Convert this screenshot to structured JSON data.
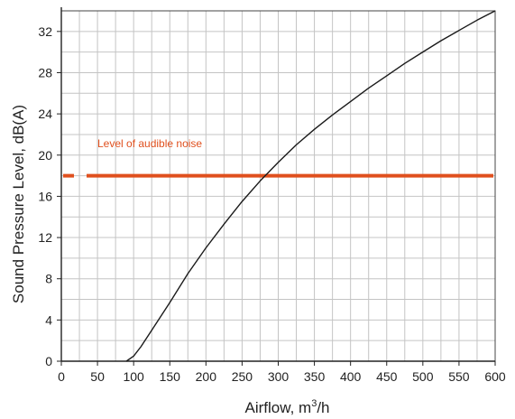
{
  "chart_data": {
    "type": "line",
    "title": "",
    "xlabel_main": "Airflow, m",
    "xlabel_sup": "3",
    "xlabel_tail": "/h",
    "ylabel": "Sound Pressure Level, dB(A)",
    "xlim": [
      0,
      600
    ],
    "ylim": [
      0,
      34
    ],
    "x_ticks": [
      0,
      50,
      100,
      150,
      200,
      250,
      300,
      350,
      400,
      450,
      500,
      550,
      600
    ],
    "x_tick_labels": [
      "0",
      "50",
      "100",
      "150",
      "200",
      "250",
      "300",
      "350",
      "400",
      "450",
      "500",
      "550",
      "600"
    ],
    "y_ticks": [
      0,
      4,
      8,
      12,
      16,
      20,
      24,
      28,
      32
    ],
    "y_tick_labels": [
      "0",
      "4",
      "8",
      "12",
      "16",
      "20",
      "24",
      "28",
      "32"
    ],
    "grid": true,
    "grid_x_step": 25,
    "grid_y_step": 2,
    "series": [
      {
        "color": "#1a1a1a",
        "x": [
          90,
          100,
          110,
          125,
          150,
          175,
          200,
          225,
          250,
          275,
          300,
          325,
          350,
          375,
          400,
          425,
          450,
          475,
          500,
          525,
          550,
          575,
          600
        ],
        "y": [
          0,
          0.5,
          1.4,
          3.0,
          5.7,
          8.5,
          11.0,
          13.3,
          15.5,
          17.5,
          19.3,
          21.0,
          22.5,
          23.9,
          25.2,
          26.5,
          27.7,
          28.9,
          30.0,
          31.1,
          32.1,
          33.1,
          34.0
        ]
      }
    ],
    "reference_line": {
      "y": 18,
      "label": "Level of audible noise",
      "color": "#e0501e"
    }
  }
}
